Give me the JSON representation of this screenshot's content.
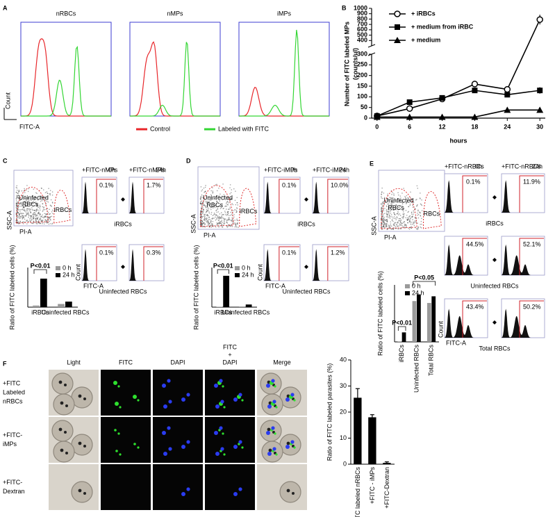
{
  "figure": {
    "A": {
      "letter": "A",
      "titles": [
        "nRBCs",
        "nMPs",
        "iMPs"
      ],
      "y_label": "Count",
      "x_label": "FITC-A",
      "legend": [
        {
          "name": "Control",
          "color": "#e8262a"
        },
        {
          "name": "Labeled with FITC",
          "color": "#33d633"
        }
      ]
    },
    "B": {
      "letter": "B"
    },
    "C": {
      "letter": "C",
      "scatter": {
        "labels": [
          "Uninfected",
          "RBCs",
          "iRBCs"
        ],
        "y_axis": "SSC-A",
        "x_axis": "PI-A"
      },
      "headers": [
        [
          "+FITC-nMPs",
          "0h"
        ],
        [
          "+FITC-nMPs",
          "24h"
        ]
      ],
      "percents": [
        [
          "0.1%",
          "1.7%"
        ],
        [
          "0.1%",
          "0.3%"
        ]
      ],
      "row_labels": [
        "iRBCs",
        "Uninfected RBCs"
      ],
      "hist_axes": {
        "y": "Count",
        "x": "FITC-A"
      }
    },
    "D": {
      "letter": "D",
      "scatter": {
        "labels": [
          "Uninfected",
          "RBCs",
          "iRBCs"
        ],
        "y_axis": "SSC-A",
        "x_axis": "PI-A"
      },
      "headers": [
        [
          "+FITC-iMPs",
          "0h"
        ],
        [
          "+FITC-iMPs",
          "24h"
        ]
      ],
      "percents": [
        [
          "0.1%",
          "10.0%"
        ],
        [
          "0.1%",
          "1.2%"
        ]
      ],
      "row_labels": [
        "iRBCs",
        "Uninfected RBCs"
      ],
      "hist_axes": {
        "y": "Count",
        "x": "FITC-A"
      }
    },
    "E": {
      "letter": "E",
      "scatter": {
        "labels": [
          "Uninfected",
          "RBCs",
          "RBCs"
        ],
        "y_axis": "SSC-A",
        "x_axis": "PI-A"
      },
      "headers": [
        [
          "+FITC-nRBCs",
          "0h"
        ],
        [
          "+FITC-nRBCs",
          "24h"
        ]
      ],
      "percents": [
        [
          "0.1%",
          "11.9%"
        ],
        [
          "44.5%",
          "52.1%"
        ],
        [
          "43.4%",
          "50.2%"
        ]
      ],
      "row_labels": [
        "iRBCs",
        "Uninfected RBCs",
        "Total RBCs"
      ],
      "hist_axes": {
        "y": "Count",
        "x": "FITC-A"
      }
    },
    "F": {
      "letter": "F",
      "columns": [
        [
          "Light"
        ],
        [
          "FITC"
        ],
        [
          "DAPI"
        ],
        [
          "FITC",
          "+",
          "DAPI"
        ],
        [
          "Merge"
        ]
      ],
      "rows": [
        [
          "+FITC",
          "Labeled",
          "nRBCs"
        ],
        [
          "+FITC-",
          "iMPs"
        ],
        [
          "+FITC-",
          "Dextran"
        ]
      ]
    }
  },
  "chart_data": [
    {
      "type": "line",
      "x_label": "hours",
      "y_label": [
        "Number of FITC labeled MPs",
        "(counts/ul)"
      ],
      "x": [
        0,
        6,
        12,
        18,
        24,
        30
      ],
      "xlim": [
        -1,
        31
      ],
      "xticks": [
        0,
        6,
        12,
        18,
        24,
        30
      ],
      "ylim": [
        0,
        1000
      ],
      "y_break": 300,
      "yticks": [
        0,
        50,
        100,
        150,
        200,
        250,
        300,
        400,
        500,
        600,
        700,
        800,
        900,
        1000
      ],
      "series": [
        {
          "name": "+ iRBCs",
          "color": "#000000",
          "marker": "circle-open",
          "values": [
            10,
            45,
            90,
            160,
            135,
            790
          ],
          "errors": [
            3,
            5,
            8,
            15,
            10,
            90
          ]
        },
        {
          "name": "+ medium from iRBC",
          "color": "#000000",
          "marker": "square",
          "values": [
            10,
            75,
            95,
            130,
            110,
            130
          ],
          "errors": [
            3,
            5,
            8,
            10,
            10,
            15
          ]
        },
        {
          "name": "+ medium",
          "color": "#000000",
          "marker": "triangle",
          "values": [
            5,
            5,
            5,
            5,
            38,
            38
          ]
        }
      ]
    },
    {
      "type": "bar",
      "y_label": "Ratio of FITC labeled cells (%)",
      "categories": [
        "iRBCs",
        "Uninfected RBCs"
      ],
      "ylim": [
        0,
        2.5
      ],
      "series": [
        {
          "name": "0 h",
          "color": "#9a9a9a",
          "values": [
            0.1,
            0.2
          ]
        },
        {
          "name": "24 h",
          "color": "#000000",
          "values": [
            1.8,
            0.35
          ]
        }
      ],
      "annotations": [
        "P<0.01"
      ]
    },
    {
      "type": "bar",
      "y_label": "Ratio of FITC labeled cells (%)",
      "categories": [
        "iRBCs",
        "Uninfected RBCs"
      ],
      "ylim": [
        0,
        12
      ],
      "series": [
        {
          "name": "0 h",
          "color": "#9a9a9a",
          "values": [
            0.1,
            0.2
          ]
        },
        {
          "name": "24 h",
          "color": "#000000",
          "values": [
            9.5,
            0.8
          ]
        }
      ],
      "annotations": [
        "P<0.01"
      ]
    },
    {
      "type": "bar",
      "y_label": "Ratio of FITC labeled cells (%)",
      "categories": [
        "iRBCs",
        "Uninfected RBCs",
        "Total RBCs"
      ],
      "ylim": [
        0,
        60
      ],
      "series": [
        {
          "name": "0 h",
          "color": "#9a9a9a",
          "values": [
            0.5,
            43,
            41
          ]
        },
        {
          "name": "24 h",
          "color": "#000000",
          "values": [
            10,
            50,
            48
          ]
        }
      ],
      "annotations": [
        "P<0.01",
        "P<0.05"
      ]
    },
    {
      "type": "bar",
      "y_label": "Ratio of FITC labeled parasites (%)",
      "categories": [
        "+FITC labeled nRBCs",
        "+FITC - iMPs",
        "+FITC-Dextran"
      ],
      "values": [
        25.5,
        18,
        0.5
      ],
      "errors": [
        3.5,
        1,
        0.4
      ],
      "color": "#000000",
      "ylim": [
        0,
        40
      ],
      "yticks": [
        0,
        10,
        20,
        30,
        40
      ]
    }
  ]
}
